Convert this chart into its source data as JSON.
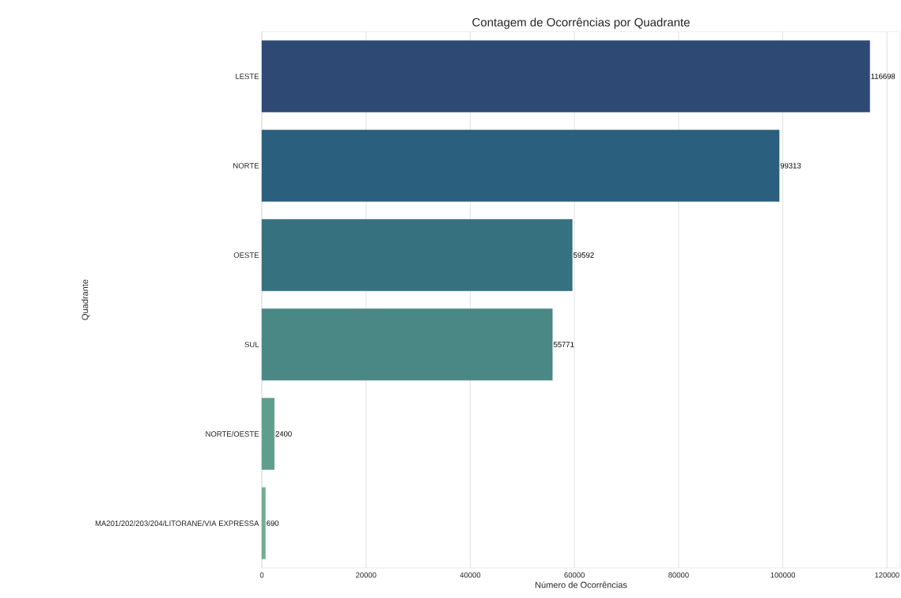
{
  "chart_data": {
    "type": "bar",
    "orientation": "horizontal",
    "title": "Contagem de Ocorrências por Quadrante",
    "xlabel": "Número de Ocorrências",
    "ylabel": "Quadrante",
    "categories": [
      "LESTE",
      "NORTE",
      "OESTE",
      "SUL",
      "NORTE/OESTE",
      "MA201/202/203/204/LITORANE/VIA EXPRESSA"
    ],
    "values": [
      116698,
      99313,
      59592,
      55771,
      2400,
      690
    ],
    "colors": [
      "#2e4a74",
      "#2a5f7e",
      "#367180",
      "#4a8885",
      "#5f9e8d",
      "#71ad8f"
    ],
    "xlim": [
      0,
      122533
    ],
    "xticks": [
      0,
      20000,
      40000,
      60000,
      80000,
      100000,
      120000
    ],
    "grid": "x",
    "data_labels": true
  }
}
